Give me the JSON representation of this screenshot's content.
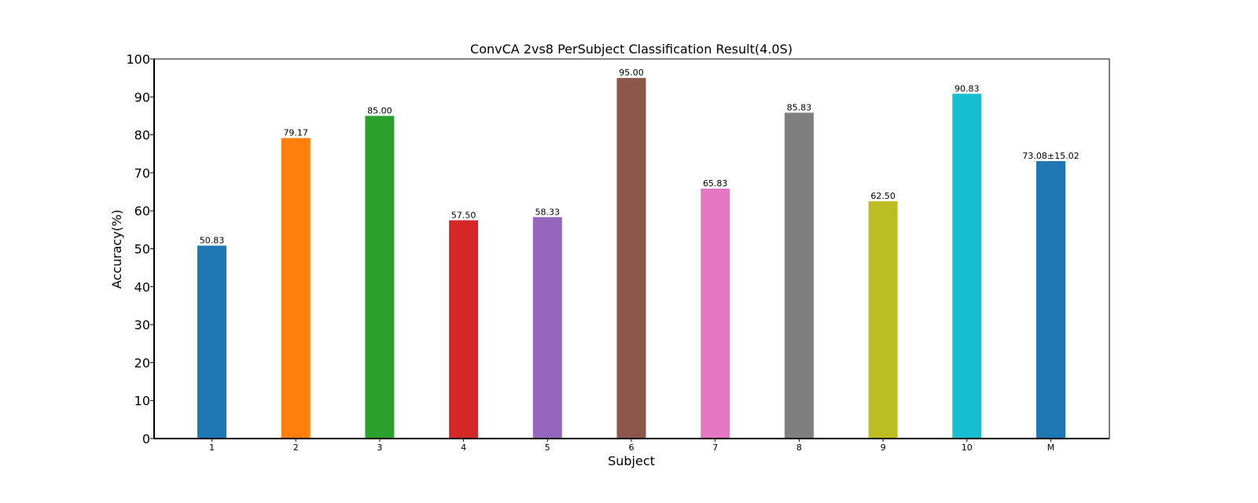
{
  "chart_data": {
    "type": "bar",
    "title": "ConvCA 2vs8 PerSubject Classification Result(4.0S)",
    "xlabel": "Subject",
    "ylabel": "Accuracy(%)",
    "ylim": [
      0,
      100
    ],
    "yticks": [
      0,
      10,
      20,
      30,
      40,
      50,
      60,
      70,
      80,
      90,
      100
    ],
    "grid": false,
    "categories": [
      "1",
      "2",
      "3",
      "4",
      "5",
      "6",
      "7",
      "8",
      "9",
      "10",
      "M"
    ],
    "values": [
      50.83,
      79.17,
      85.0,
      57.5,
      58.33,
      95.0,
      65.83,
      85.83,
      62.5,
      90.83,
      73.08
    ],
    "value_labels": [
      "50.83",
      "79.17",
      "85.00",
      "57.50",
      "58.33",
      "95.00",
      "65.83",
      "85.83",
      "62.50",
      "90.83",
      "73.08±15.02"
    ],
    "colors": [
      "#1f77b4",
      "#ff7f0e",
      "#2ca02c",
      "#d62728",
      "#9467bd",
      "#8c564b",
      "#e377c2",
      "#7f7f7f",
      "#bcbd22",
      "#17becf",
      "#1f77b4"
    ],
    "label_colors": [
      "#000000",
      "#000000",
      "#000000",
      "#000000",
      "#000000",
      "#000000",
      "#000000",
      "#000000",
      "#000000",
      "#000000",
      "#ff0000"
    ]
  }
}
